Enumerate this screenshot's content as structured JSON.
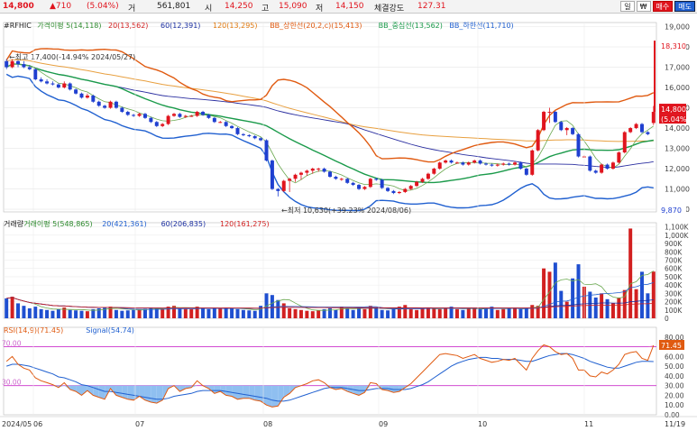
{
  "quote": {
    "price": "14,800",
    "change": "▲710",
    "change_pct": "(5.04%)",
    "volume_label": "거",
    "volume": "561,801",
    "open_label": "시",
    "open": "14,250",
    "high_label": "고",
    "high": "15,090",
    "low_label": "저",
    "low": "14,150",
    "strength_label": "체결강도",
    "strength": "127.31"
  },
  "toolbar": {
    "day_label": "일",
    "unit_label": "₩",
    "buy_label": "매수",
    "sell_label": "매도"
  },
  "price_panel": {
    "legend": [
      {
        "text": "#RFHIC",
        "color": "#222222"
      },
      {
        "text": "가격이평 5(14,118)",
        "color": "#2e8b2e"
      },
      {
        "text": "20(13,562)",
        "color": "#d22020"
      },
      {
        "text": "60(12,391)",
        "color": "#1a2ea0"
      },
      {
        "text": "120(13,295)",
        "color": "#e07a10"
      },
      {
        "text": "BB_상한선(20,2,c)(15,413)",
        "color": "#e05a10"
      },
      {
        "text": "BB_중심선(13,562)",
        "color": "#1a9a4a"
      },
      {
        "text": "BB_하한선(11,710)",
        "color": "#2060d0"
      }
    ],
    "high_note": "←최고 17,400(-14.94% 2024/05/27)",
    "low_note": "←최저 10,630(+39.23% 2024/08/06)",
    "max_tag": "18,310",
    "last_tag": "14,800",
    "last_pct_tag": "(5.04%)",
    "min_tag": "9,870"
  },
  "volume_panel": {
    "legend": [
      {
        "text": "거래량",
        "color": "#222222"
      },
      {
        "text": "거래이평 5(548,865)",
        "color": "#2e8b2e"
      },
      {
        "text": "20(421,361)",
        "color": "#2060d0"
      },
      {
        "text": "60(206,835)",
        "color": "#1a2ea0"
      },
      {
        "text": "120(161,275)",
        "color": "#d22020"
      }
    ]
  },
  "rsi_panel": {
    "legend": [
      {
        "text": "RSI(14,9)(71.45)",
        "color": "#e05a10"
      },
      {
        "text": "Signal(54.74)",
        "color": "#2060d0"
      }
    ],
    "upper_line": "70.00",
    "lower_line": "30.00",
    "last_tag": "71.45"
  },
  "x_axis": {
    "ticks": [
      "2024/05",
      "06",
      "07",
      "08",
      "09",
      "10",
      "11",
      "11/19"
    ]
  },
  "chart_data": [
    {
      "type": "candlestick",
      "name": "price",
      "ylim": [
        9870,
        18310
      ],
      "yticks": [
        "19,000",
        "18,000",
        "17,000",
        "16,000",
        "15,000",
        "14,000",
        "13,000",
        "12,000",
        "11,000",
        "10,000"
      ],
      "ytick_values": [
        19000,
        18000,
        17000,
        16000,
        15000,
        14000,
        13000,
        12000,
        11000,
        10000
      ],
      "x_range": "2024/05 - 2024/11/19",
      "closes": [
        17000,
        17300,
        17150,
        17000,
        16900,
        16400,
        16300,
        16200,
        16150,
        16000,
        16200,
        15900,
        15700,
        15500,
        15600,
        15300,
        15100,
        15000,
        15300,
        15000,
        14800,
        14650,
        14600,
        14700,
        14500,
        14300,
        14100,
        14200,
        14600,
        14700,
        14550,
        14600,
        14600,
        14800,
        14650,
        14500,
        14300,
        14300,
        14100,
        14000,
        13700,
        13650,
        13600,
        13500,
        13400,
        12400,
        11000,
        10900,
        11400,
        11500,
        11700,
        11800,
        11900,
        12000,
        12000,
        11850,
        11600,
        11500,
        11500,
        11300,
        11200,
        11000,
        11100,
        11500,
        11450,
        11050,
        10900,
        10800,
        10850,
        11000,
        11150,
        11350,
        11500,
        11750,
        12000,
        12300,
        12400,
        12300,
        12300,
        12200,
        12300,
        12400,
        12250,
        12200,
        12150,
        12200,
        12250,
        12200,
        12300,
        12000,
        11700,
        12900,
        13900,
        14800,
        14800,
        14300,
        13900,
        14000,
        13700,
        12600,
        12600,
        11900,
        11800,
        12200,
        12000,
        12300,
        12800,
        13800,
        14000,
        14200,
        13800,
        13700,
        14800
      ],
      "opens": [
        17300,
        17000,
        17300,
        17150,
        17000,
        16900,
        16400,
        16300,
        16200,
        16150,
        16000,
        16200,
        15900,
        15700,
        15500,
        15600,
        15300,
        15100,
        15000,
        15300,
        15000,
        14800,
        14650,
        14600,
        14700,
        14500,
        14300,
        14100,
        14200,
        14600,
        14700,
        14550,
        14600,
        14600,
        14800,
        14650,
        14500,
        14300,
        14300,
        14100,
        14000,
        13700,
        13650,
        13600,
        13500,
        13400,
        12400,
        11000,
        10900,
        11400,
        11500,
        11700,
        11800,
        11900,
        12000,
        12000,
        11850,
        11600,
        11500,
        11500,
        11300,
        11200,
        11000,
        11100,
        11500,
        11450,
        11050,
        10900,
        10800,
        10850,
        11000,
        11150,
        11350,
        11500,
        11750,
        12000,
        12300,
        12400,
        12300,
        12300,
        12200,
        12300,
        12400,
        12250,
        12200,
        12150,
        12200,
        12250,
        12200,
        12300,
        12000,
        11700,
        12900,
        13900,
        14800,
        14800,
        14300,
        13900,
        14000,
        13700,
        12600,
        12600,
        11900,
        11800,
        12200,
        12000,
        12300,
        12800,
        13800,
        14000,
        14200,
        13800,
        14250
      ],
      "highs": [
        17400,
        17400,
        17350,
        17300,
        17100,
        16950,
        16500,
        16400,
        16300,
        16200,
        16300,
        16250,
        15950,
        15750,
        15700,
        15650,
        15350,
        15150,
        15350,
        15350,
        15050,
        14850,
        14700,
        14750,
        14750,
        14550,
        14350,
        14250,
        14650,
        14750,
        14750,
        14650,
        14650,
        14850,
        14850,
        14700,
        14550,
        14350,
        14350,
        14150,
        14050,
        13750,
        13700,
        13650,
        13550,
        13450,
        12450,
        11050,
        11450,
        11550,
        11750,
        11850,
        11950,
        12050,
        12050,
        12050,
        11900,
        11650,
        11550,
        11550,
        11350,
        11250,
        11150,
        11550,
        11550,
        11500,
        11100,
        10950,
        10900,
        11050,
        11200,
        11400,
        11550,
        11800,
        12050,
        12350,
        12450,
        12450,
        12350,
        12350,
        12350,
        12450,
        12450,
        12300,
        12250,
        12250,
        12300,
        12300,
        12350,
        12350,
        12050,
        12950,
        13950,
        14850,
        15000,
        14850,
        14350,
        14050,
        14050,
        13750,
        12650,
        12650,
        11950,
        12250,
        12250,
        12350,
        12850,
        13850,
        14050,
        14250,
        14250,
        13850,
        15090
      ],
      "lows": [
        16900,
        16950,
        17000,
        16950,
        16850,
        16350,
        16250,
        16150,
        16100,
        15950,
        15950,
        15850,
        15650,
        15450,
        15450,
        15250,
        15050,
        14950,
        14950,
        14950,
        14750,
        14600,
        14550,
        14550,
        14450,
        14250,
        14050,
        14050,
        14150,
        14550,
        14500,
        14500,
        14550,
        14550,
        14600,
        14450,
        14250,
        14250,
        14050,
        13950,
        13650,
        13600,
        13550,
        13450,
        13350,
        12350,
        10950,
        10630,
        10850,
        10850,
        11350,
        11450,
        11650,
        11750,
        11850,
        11800,
        11550,
        11450,
        11400,
        11250,
        11150,
        10950,
        10950,
        11050,
        11400,
        11000,
        10850,
        10750,
        10750,
        10800,
        10950,
        11100,
        11300,
        11450,
        11700,
        11950,
        12250,
        12250,
        12250,
        12150,
        12150,
        12250,
        12200,
        12150,
        12100,
        12100,
        12150,
        12150,
        12150,
        11950,
        11650,
        11650,
        12850,
        13850,
        14250,
        14250,
        13850,
        13650,
        13650,
        12550,
        12550,
        11850,
        11750,
        11750,
        11950,
        11950,
        12250,
        12750,
        13750,
        13950,
        13750,
        13650,
        14150
      ]
    },
    {
      "type": "bar",
      "name": "volume",
      "ylim": [
        0,
        1150000
      ],
      "yticks": [
        "1,100K",
        "1,000K",
        "900K",
        "800K",
        "700K",
        "600K",
        "500K",
        "400K",
        "300K",
        "200K",
        "100K",
        "0"
      ],
      "ytick_values": [
        1100000,
        1000000,
        900000,
        800000,
        700000,
        600000,
        500000,
        400000,
        300000,
        200000,
        100000,
        0
      ],
      "values": [
        240,
        260,
        180,
        150,
        120,
        140,
        110,
        100,
        90,
        110,
        130,
        100,
        95,
        90,
        85,
        110,
        120,
        130,
        140,
        100,
        90,
        95,
        100,
        110,
        115,
        130,
        120,
        115,
        140,
        150,
        120,
        115,
        110,
        140,
        120,
        110,
        120,
        115,
        130,
        120,
        110,
        100,
        95,
        90,
        150,
        300,
        280,
        220,
        180,
        120,
        110,
        100,
        90,
        85,
        95,
        110,
        120,
        100,
        140,
        120,
        100,
        130,
        110,
        150,
        120,
        100,
        95,
        110,
        140,
        160,
        110,
        100,
        120,
        130,
        115,
        110,
        120,
        140,
        110,
        100,
        115,
        125,
        110,
        120,
        140,
        100,
        110,
        120,
        130,
        110,
        115,
        160,
        150,
        600,
        560,
        670,
        330,
        200,
        480,
        650,
        380,
        320,
        250,
        300,
        230,
        180,
        250,
        340,
        1080,
        350,
        560,
        300,
        562
      ],
      "colors_up": "#d22020",
      "colors_down": "#1f4fd0"
    },
    {
      "type": "line",
      "name": "RSI",
      "ylim": [
        0,
        90
      ],
      "yticks": [
        "80.00",
        "70.00",
        "60.00",
        "50.00",
        "40.00",
        "30.00",
        "20.00",
        "10.00",
        "0.00"
      ],
      "ytick_values": [
        80,
        70,
        60,
        50,
        40,
        30,
        20,
        10,
        0
      ],
      "series": [
        {
          "name": "RSI(14,9)",
          "color": "#e05a10",
          "values": [
            55,
            60,
            52,
            48,
            46,
            38,
            35,
            33,
            31,
            28,
            33,
            26,
            24,
            20,
            25,
            20,
            18,
            16,
            27,
            20,
            18,
            16,
            15,
            19,
            15,
            13,
            12,
            15,
            27,
            30,
            24,
            27,
            28,
            35,
            30,
            27,
            22,
            24,
            20,
            19,
            16,
            17,
            17,
            15,
            14,
            10,
            8,
            9,
            18,
            22,
            28,
            30,
            32,
            35,
            36,
            33,
            28,
            26,
            27,
            24,
            22,
            20,
            23,
            33,
            32,
            26,
            25,
            23,
            24,
            28,
            32,
            38,
            44,
            50,
            56,
            62,
            63,
            62,
            61,
            58,
            60,
            62,
            58,
            56,
            54,
            55,
            57,
            56,
            58,
            52,
            46,
            58,
            66,
            72,
            70,
            65,
            62,
            63,
            58,
            46,
            46,
            40,
            39,
            44,
            42,
            46,
            52,
            62,
            64,
            65,
            58,
            56,
            71.45
          ]
        },
        {
          "name": "Signal",
          "color": "#2060d0",
          "values": [
            50,
            52,
            52,
            51,
            50,
            48,
            46,
            44,
            42,
            39,
            38,
            36,
            34,
            31,
            30,
            28,
            26,
            24,
            24,
            23,
            22,
            21,
            20,
            19,
            18,
            17,
            16,
            16,
            17,
            19,
            20,
            21,
            22,
            24,
            25,
            25,
            25,
            25,
            24,
            23,
            22,
            21,
            20,
            19,
            18,
            17,
            15,
            14,
            14,
            15,
            17,
            19,
            21,
            23,
            25,
            27,
            28,
            28,
            28,
            27,
            26,
            25,
            25,
            26,
            27,
            27,
            27,
            26,
            26,
            26,
            27,
            29,
            31,
            34,
            38,
            42,
            46,
            50,
            53,
            55,
            57,
            58,
            59,
            59,
            58,
            58,
            57,
            57,
            57,
            56,
            55,
            55,
            57,
            59,
            61,
            62,
            63,
            63,
            62,
            60,
            58,
            55,
            53,
            51,
            49,
            48,
            48,
            50,
            52,
            54,
            55,
            55,
            54.74
          ]
        }
      ]
    }
  ]
}
